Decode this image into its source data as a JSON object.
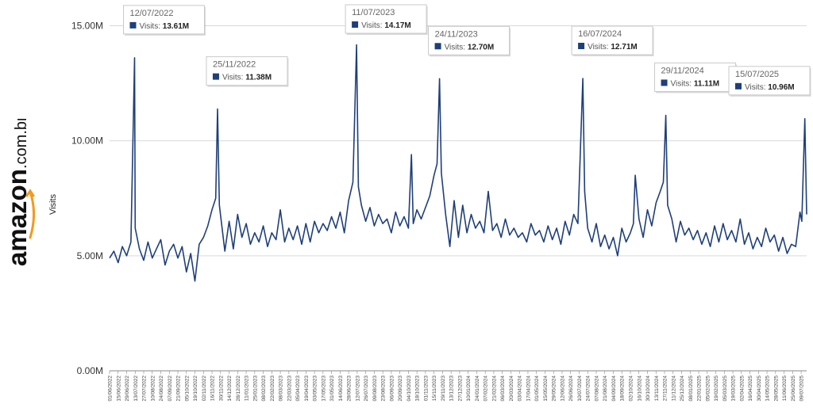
{
  "logo": {
    "brand": "amazon",
    "suffix": ".com.br"
  },
  "chart_data": {
    "type": "line",
    "ylabel": "Visits",
    "xlabel": "",
    "title": "",
    "ylim": [
      0,
      15.5
    ],
    "yticks": [
      "0.00M",
      "5.00M",
      "10.00M",
      "15.00M"
    ],
    "yticks_values": [
      0,
      5,
      10,
      15
    ],
    "grid": true,
    "line_color": "#1f3f7a",
    "xticks": [
      "01/06/2022",
      "15/06/2022",
      "29/06/2022",
      "13/07/2022",
      "27/07/2022",
      "10/08/2022",
      "24/08/2022",
      "07/09/2022",
      "21/09/2022",
      "05/10/2022",
      "19/10/2022",
      "02/11/2022",
      "16/11/2022",
      "30/11/2022",
      "14/12/2022",
      "28/12/2022",
      "11/01/2023",
      "25/01/2023",
      "08/02/2023",
      "22/02/2023",
      "08/03/2023",
      "22/03/2023",
      "05/04/2023",
      "19/04/2023",
      "03/05/2023",
      "17/05/2023",
      "31/05/2023",
      "14/06/2023",
      "28/06/2023",
      "12/07/2023",
      "26/07/2023",
      "09/08/2023",
      "23/08/2023",
      "06/09/2023",
      "20/09/2023",
      "04/10/2023",
      "18/10/2023",
      "01/11/2023",
      "15/11/2023",
      "29/11/2023",
      "13/12/2023",
      "27/12/2023",
      "10/01/2024",
      "24/01/2024",
      "07/02/2024",
      "21/02/2024",
      "06/03/2024",
      "20/03/2024",
      "03/04/2024",
      "17/04/2024",
      "01/05/2024",
      "15/05/2024",
      "29/05/2024",
      "12/06/2024",
      "26/06/2024",
      "10/07/2024",
      "24/07/2024",
      "07/08/2024",
      "21/08/2024",
      "04/09/2024",
      "18/09/2024",
      "02/10/2024",
      "16/10/2024",
      "30/10/2024",
      "13/11/2024",
      "27/11/2024",
      "11/12/2024",
      "25/12/2024",
      "08/01/2025",
      "22/01/2025",
      "05/02/2025",
      "19/02/2025",
      "05/03/2025",
      "19/03/2025",
      "02/04/2025",
      "16/04/2025",
      "30/04/2025",
      "14/05/2025",
      "28/05/2025",
      "11/06/2025",
      "25/06/2025",
      "09/07/2025"
    ],
    "series": [
      {
        "name": "Visits",
        "unit": "M",
        "x": [
          "01/06/2022",
          "08/06/2022",
          "15/06/2022",
          "22/06/2022",
          "29/06/2022",
          "06/07/2022",
          "12/07/2022",
          "13/07/2022",
          "20/07/2022",
          "27/07/2022",
          "03/08/2022",
          "10/08/2022",
          "17/08/2022",
          "24/08/2022",
          "31/08/2022",
          "07/09/2022",
          "14/09/2022",
          "21/09/2022",
          "28/09/2022",
          "05/10/2022",
          "12/10/2022",
          "19/10/2022",
          "26/10/2022",
          "02/11/2022",
          "09/11/2022",
          "16/11/2022",
          "22/11/2022",
          "25/11/2022",
          "28/11/2022",
          "07/12/2022",
          "14/12/2022",
          "21/12/2022",
          "28/12/2022",
          "04/01/2023",
          "11/01/2023",
          "18/01/2023",
          "25/01/2023",
          "01/02/2023",
          "08/02/2023",
          "15/02/2023",
          "22/02/2023",
          "01/03/2023",
          "08/03/2023",
          "15/03/2023",
          "22/03/2023",
          "29/03/2023",
          "05/04/2023",
          "12/04/2023",
          "19/04/2023",
          "26/04/2023",
          "03/05/2023",
          "10/05/2023",
          "17/05/2023",
          "24/05/2023",
          "31/05/2023",
          "07/06/2023",
          "14/06/2023",
          "21/06/2023",
          "28/06/2023",
          "05/07/2023",
          "11/07/2023",
          "14/07/2023",
          "19/07/2023",
          "26/07/2023",
          "02/08/2023",
          "09/08/2023",
          "16/08/2023",
          "23/08/2023",
          "30/08/2023",
          "06/09/2023",
          "13/09/2023",
          "20/09/2023",
          "27/09/2023",
          "04/10/2023",
          "09/10/2023",
          "12/10/2023",
          "18/10/2023",
          "25/10/2023",
          "01/11/2023",
          "08/11/2023",
          "15/11/2023",
          "20/11/2023",
          "24/11/2023",
          "27/11/2023",
          "04/12/2023",
          "11/12/2023",
          "18/12/2023",
          "25/12/2023",
          "01/01/2024",
          "08/01/2024",
          "15/01/2024",
          "22/01/2024",
          "29/01/2024",
          "05/02/2024",
          "12/02/2024",
          "19/02/2024",
          "26/02/2024",
          "04/03/2024",
          "11/03/2024",
          "18/03/2024",
          "25/03/2024",
          "01/04/2024",
          "08/04/2024",
          "15/04/2024",
          "22/04/2024",
          "29/04/2024",
          "06/05/2024",
          "13/05/2024",
          "20/05/2024",
          "27/05/2024",
          "03/06/2024",
          "10/06/2024",
          "17/06/2024",
          "24/06/2024",
          "01/07/2024",
          "08/07/2024",
          "16/07/2024",
          "19/07/2024",
          "24/07/2024",
          "31/07/2024",
          "07/08/2024",
          "14/08/2024",
          "21/08/2024",
          "28/08/2024",
          "04/09/2024",
          "11/09/2024",
          "18/09/2024",
          "25/09/2024",
          "02/10/2024",
          "07/10/2024",
          "10/10/2024",
          "16/10/2024",
          "23/10/2024",
          "30/10/2024",
          "06/11/2024",
          "13/11/2024",
          "20/11/2024",
          "25/11/2024",
          "29/11/2024",
          "02/12/2024",
          "09/12/2024",
          "16/12/2024",
          "23/12/2024",
          "30/12/2024",
          "06/01/2025",
          "13/01/2025",
          "20/01/2025",
          "27/01/2025",
          "03/02/2025",
          "10/02/2025",
          "17/02/2025",
          "24/02/2025",
          "03/03/2025",
          "10/03/2025",
          "17/03/2025",
          "24/03/2025",
          "31/03/2025",
          "07/04/2025",
          "14/04/2025",
          "21/04/2025",
          "28/04/2025",
          "05/05/2025",
          "12/05/2025",
          "19/05/2025",
          "26/05/2025",
          "02/06/2025",
          "09/06/2025",
          "16/06/2025",
          "23/06/2025",
          "30/06/2025",
          "07/07/2025",
          "10/07/2025",
          "15/07/2025",
          "18/07/2025"
        ],
        "values": [
          4.9,
          5.2,
          4.7,
          5.4,
          5.0,
          5.6,
          13.61,
          6.2,
          5.3,
          4.8,
          5.6,
          4.9,
          5.3,
          5.7,
          4.6,
          5.2,
          5.5,
          4.9,
          5.4,
          4.3,
          5.1,
          3.9,
          5.5,
          5.8,
          6.3,
          7.0,
          7.5,
          11.38,
          7.2,
          5.2,
          6.5,
          5.3,
          6.8,
          5.8,
          6.4,
          5.5,
          6.0,
          5.6,
          6.3,
          5.4,
          6.0,
          5.7,
          7.0,
          5.6,
          6.2,
          5.7,
          6.3,
          5.5,
          6.4,
          5.6,
          6.5,
          6.0,
          6.4,
          6.1,
          6.7,
          6.2,
          6.9,
          6.0,
          7.4,
          8.2,
          14.17,
          8.0,
          7.2,
          6.5,
          7.1,
          6.3,
          6.8,
          6.4,
          6.6,
          6.0,
          6.9,
          6.3,
          6.7,
          6.2,
          9.4,
          6.4,
          7.0,
          6.6,
          7.1,
          7.6,
          8.5,
          9.0,
          12.7,
          8.6,
          6.8,
          5.4,
          7.4,
          5.8,
          7.2,
          6.0,
          6.8,
          6.2,
          6.5,
          6.0,
          7.8,
          6.1,
          6.4,
          5.8,
          6.6,
          5.9,
          6.2,
          5.8,
          6.0,
          5.6,
          6.4,
          5.9,
          6.1,
          5.6,
          6.3,
          5.7,
          6.2,
          5.5,
          6.5,
          5.9,
          6.8,
          6.4,
          12.71,
          7.8,
          6.2,
          5.6,
          6.4,
          5.4,
          5.9,
          5.3,
          5.8,
          5.0,
          6.2,
          5.6,
          6.0,
          6.4,
          8.5,
          6.6,
          5.8,
          7.0,
          6.3,
          7.3,
          7.8,
          8.2,
          11.11,
          7.2,
          6.6,
          5.6,
          6.5,
          5.9,
          6.2,
          5.7,
          6.1,
          5.5,
          6.0,
          5.4,
          6.3,
          5.6,
          6.4,
          5.7,
          6.1,
          5.6,
          6.6,
          5.5,
          6.0,
          5.3,
          5.8,
          5.4,
          6.2,
          5.6,
          5.9,
          5.2,
          5.8,
          5.1,
          5.5,
          5.4,
          6.9,
          6.5,
          10.96,
          6.8
        ]
      }
    ],
    "annotations": [
      {
        "date": "12/07/2022",
        "label": "Visits:",
        "value": "13.61M"
      },
      {
        "date": "25/11/2022",
        "label": "Visits:",
        "value": "11.38M"
      },
      {
        "date": "11/07/2023",
        "label": "Visits:",
        "value": "14.17M"
      },
      {
        "date": "24/11/2023",
        "label": "Visits:",
        "value": "12.70M"
      },
      {
        "date": "16/07/2024",
        "label": "Visits:",
        "value": "12.71M"
      },
      {
        "date": "29/11/2024",
        "label": "Visits:",
        "value": "11.11M"
      },
      {
        "date": "15/07/2025",
        "label": "Visits:",
        "value": "10.96M"
      }
    ]
  }
}
